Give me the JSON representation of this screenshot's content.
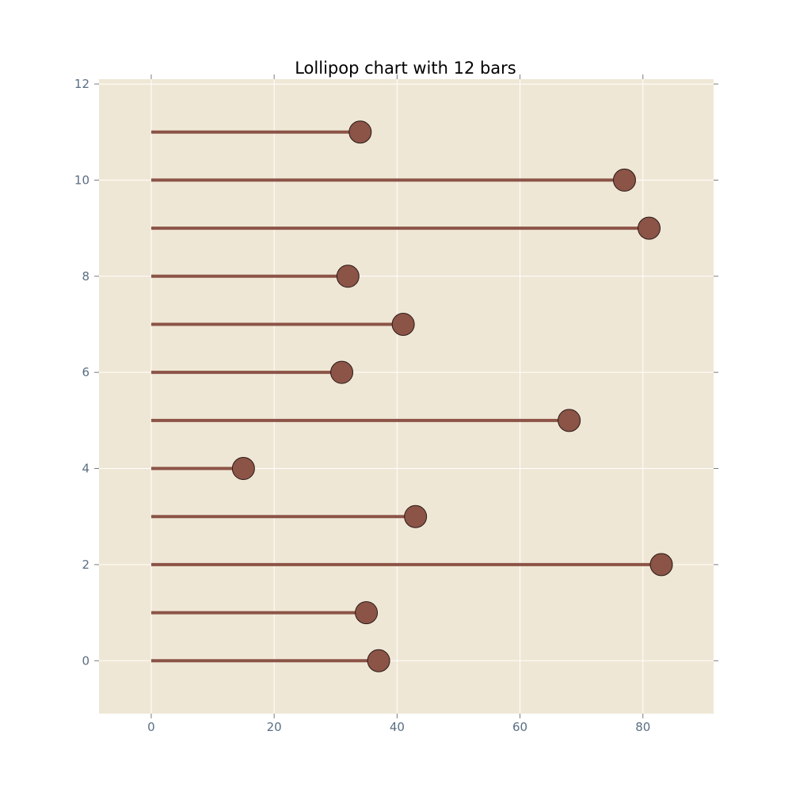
{
  "chart_data": {
    "type": "lollipop",
    "orientation": "horizontal",
    "title": "Lollipop chart with 12 bars",
    "xlabel": "",
    "ylabel": "",
    "y": [
      0,
      1,
      2,
      3,
      4,
      5,
      6,
      7,
      8,
      9,
      10,
      11
    ],
    "values": [
      37,
      35,
      83,
      43,
      15,
      68,
      31,
      41,
      32,
      81,
      77,
      34
    ],
    "xlim": [
      -8.5,
      91.5
    ],
    "ylim": [
      -1.1,
      12.1
    ],
    "xticks": [
      0,
      20,
      40,
      60,
      80
    ],
    "yticks": [
      0,
      2,
      4,
      6,
      8,
      10,
      12
    ],
    "grid": true,
    "colors": {
      "plot_background": "#efe7d5",
      "stem": "#8b5447",
      "marker": "#8b5447",
      "marker_edge": "#2a1a16",
      "grid": "#ffffff",
      "tick_label": "#5a6e82",
      "tick_mark": "#7a7a7a"
    }
  }
}
